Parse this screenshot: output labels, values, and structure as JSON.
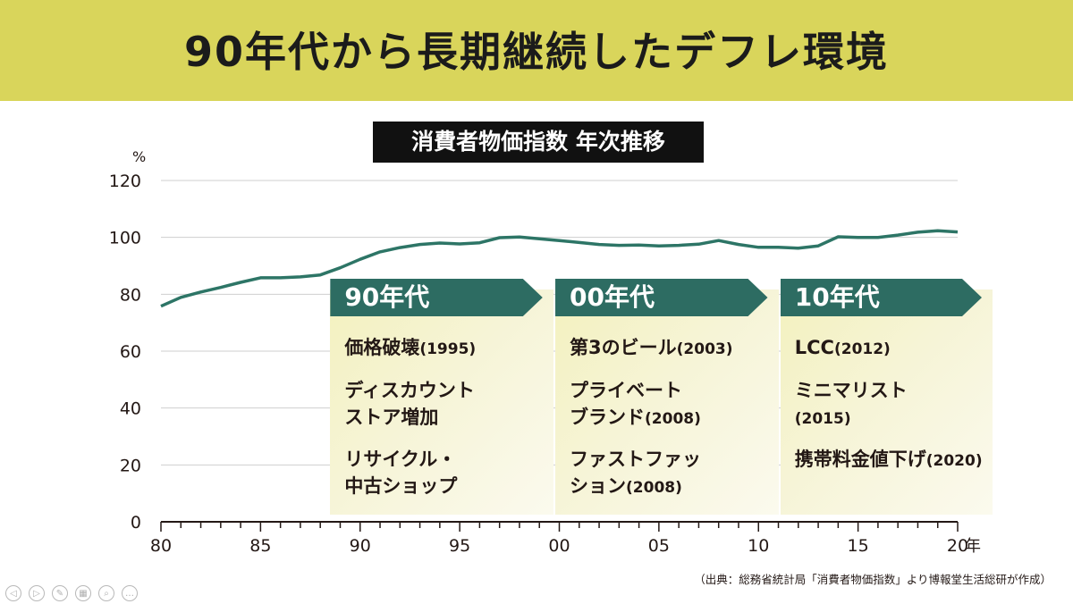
{
  "banner": {
    "title": "90年代から長期継続したデフレ環境"
  },
  "chart_title": "消費者物価指数 年次推移",
  "chart_data": {
    "type": "line",
    "title": "消費者物価指数 年次推移",
    "yunit": "%",
    "xunit": "年",
    "ylim": [
      0,
      120
    ],
    "yticks": [
      0,
      20,
      40,
      60,
      80,
      100,
      120
    ],
    "xlim": [
      1980,
      2020
    ],
    "xticks": [
      {
        "value": 1980,
        "label": "80"
      },
      {
        "value": 1985,
        "label": "85"
      },
      {
        "value": 1990,
        "label": "90"
      },
      {
        "value": 1995,
        "label": "95"
      },
      {
        "value": 2000,
        "label": "00"
      },
      {
        "value": 2005,
        "label": "05"
      },
      {
        "value": 2010,
        "label": "10"
      },
      {
        "value": 2015,
        "label": "15"
      },
      {
        "value": 2020,
        "label": "20"
      }
    ],
    "grid": true,
    "series": [
      {
        "color": "#2d7566",
        "x": [
          1980,
          1981,
          1982,
          1983,
          1984,
          1985,
          1986,
          1987,
          1988,
          1989,
          1990,
          1991,
          1992,
          1993,
          1994,
          1995,
          1996,
          1997,
          1998,
          1999,
          2000,
          2001,
          2002,
          2003,
          2004,
          2005,
          2006,
          2007,
          2008,
          2009,
          2010,
          2011,
          2012,
          2013,
          2014,
          2015,
          2016,
          2017,
          2018,
          2019,
          2020
        ],
        "values": [
          75.8,
          78.9,
          80.8,
          82.4,
          84.2,
          85.8,
          85.8,
          86.1,
          86.8,
          89.3,
          92.3,
          94.9,
          96.4,
          97.5,
          98.0,
          97.7,
          98.1,
          99.9,
          100.1,
          99.5,
          98.9,
          98.2,
          97.5,
          97.2,
          97.3,
          97.0,
          97.2,
          97.6,
          98.9,
          97.5,
          96.5,
          96.5,
          96.2,
          97.0,
          100.2,
          100.0,
          100.0,
          100.8,
          101.8,
          102.3,
          101.9
        ]
      }
    ],
    "annotations": [
      {
        "era": "90年代",
        "start": 1988.5,
        "end": 1999.7,
        "items": [
          {
            "lines": [
              "価格破壊"
            ],
            "year": "(1995)"
          },
          {
            "lines": [
              "ディスカウント",
              "ストア増加"
            ],
            "year": ""
          },
          {
            "lines": [
              "リサイクル・",
              "中古ショップ"
            ],
            "year": ""
          }
        ]
      },
      {
        "era": "00年代",
        "start": 1999.8,
        "end": 2011.0,
        "items": [
          {
            "lines": [
              "第3のビール"
            ],
            "year": "(2003)"
          },
          {
            "lines": [
              "プライベート",
              "ブランド"
            ],
            "year": "(2008)"
          },
          {
            "lines": [
              "ファストファッ",
              "ション"
            ],
            "year": "(2008)"
          }
        ]
      },
      {
        "era": "10年代",
        "start": 2011.1,
        "end": 2022.3,
        "items": [
          {
            "lines": [
              "LCC"
            ],
            "year": "(2012)"
          },
          {
            "lines": [
              "ミニマリスト"
            ],
            "year": "(2015)"
          },
          {
            "lines": [
              "携帯料金値下げ"
            ],
            "year": "(2020)"
          }
        ]
      }
    ]
  },
  "source": "（出典：総務省統計局「消費者物価指数」より博報堂生活総研が作成）",
  "toolbar": {
    "icons": [
      "back-icon",
      "play-icon",
      "pen-icon",
      "slides-icon",
      "zoom-icon",
      "more-icon"
    ],
    "glyphs": [
      "◁",
      "▷",
      "✎",
      "▦",
      "⌕",
      "…"
    ]
  }
}
